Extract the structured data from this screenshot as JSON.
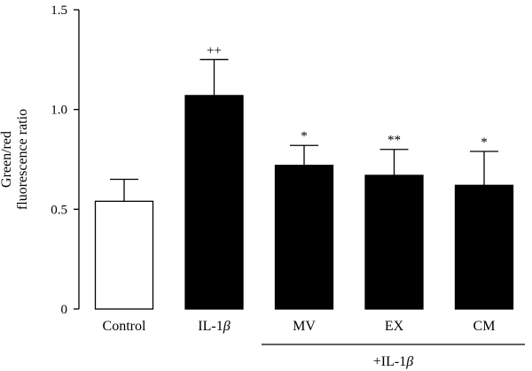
{
  "chart_data": {
    "type": "bar",
    "title": "",
    "ylabel_lines": [
      "Green/red",
      "fluorescence ratio"
    ],
    "xlabel": "",
    "ylim": [
      0,
      1.5
    ],
    "yticks": [
      0,
      0.5,
      1.0,
      1.5
    ],
    "ytick_labels": [
      "0",
      "0.5",
      "1.0",
      "1.5"
    ],
    "categories": [
      {
        "text": "Control"
      },
      {
        "text": "IL-1",
        "greek": "β"
      },
      {
        "text": "MV"
      },
      {
        "text": "EX"
      },
      {
        "text": "CM"
      }
    ],
    "values": [
      0.54,
      1.07,
      0.72,
      0.67,
      0.62
    ],
    "errors": [
      0.11,
      0.18,
      0.1,
      0.13,
      0.17
    ],
    "bar_fills": [
      "#ffffff",
      "#000000",
      "#000000",
      "#000000",
      "#000000"
    ],
    "significance": [
      "",
      "++",
      "*",
      "**",
      "*"
    ],
    "group_label": {
      "text": "+IL-1",
      "greek": "β",
      "from_index": 2,
      "to_index": 4
    },
    "grid": false,
    "legend": "none"
  }
}
